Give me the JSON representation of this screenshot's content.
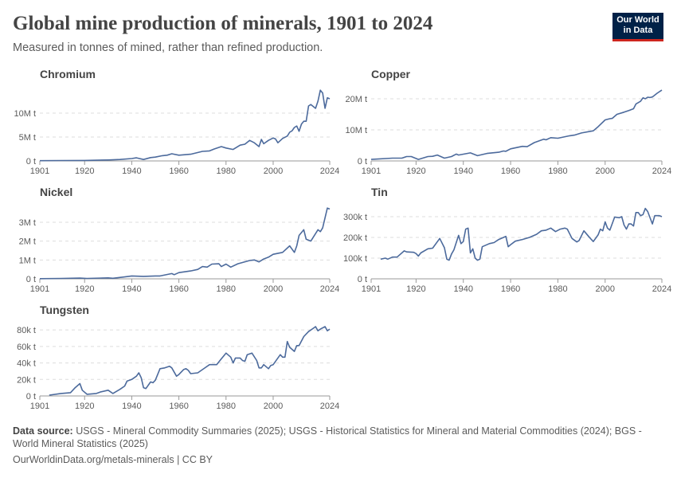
{
  "header": {
    "title": "Global mine production of minerals, 1901 to 2024",
    "subtitle": "Measured in tonnes of mined, rather than refined production.",
    "logo_text": "Our World in Data"
  },
  "footer": {
    "source_label": "Data source:",
    "source_text": "USGS - Mineral Commodity Summaries (2025); USGS - Historical Statistics for Mineral and Material Commodities (2024); BGS - World Mineral Statistics (2025)",
    "url_license": "OurWorldinData.org/metals-minerals | CC BY"
  },
  "colors": {
    "line": "#4c6a9c",
    "grid": "#dddddd",
    "axis": "#999999",
    "text": "#5b5b5b",
    "title": "#444444",
    "logo_bg": "#002147",
    "logo_accent": "#ce261e"
  },
  "chart_data": [
    {
      "type": "line",
      "title": "Chromium",
      "xlim": [
        1901,
        2024
      ],
      "ylim": [
        0,
        15
      ],
      "x_ticks": [
        "1901",
        "1920",
        "1940",
        "1960",
        "1980",
        "2000",
        "2024"
      ],
      "y_ticks": [
        {
          "value": 0,
          "label": "0 t"
        },
        {
          "value": 5,
          "label": "5M t"
        },
        {
          "value": 10,
          "label": "10M t"
        }
      ],
      "unit": "million tonnes",
      "grid": true,
      "points": [
        [
          1901,
          0.05
        ],
        [
          1910,
          0.08
        ],
        [
          1920,
          0.1
        ],
        [
          1930,
          0.2
        ],
        [
          1935,
          0.3
        ],
        [
          1940,
          0.5
        ],
        [
          1942,
          0.65
        ],
        [
          1945,
          0.3
        ],
        [
          1948,
          0.7
        ],
        [
          1950,
          0.8
        ],
        [
          1953,
          1.1
        ],
        [
          1955,
          1.2
        ],
        [
          1957,
          1.5
        ],
        [
          1960,
          1.2
        ],
        [
          1965,
          1.4
        ],
        [
          1970,
          2.0
        ],
        [
          1973,
          2.1
        ],
        [
          1975,
          2.5
        ],
        [
          1978,
          3.0
        ],
        [
          1980,
          2.7
        ],
        [
          1983,
          2.4
        ],
        [
          1986,
          3.3
        ],
        [
          1988,
          3.5
        ],
        [
          1990,
          4.3
        ],
        [
          1992,
          3.8
        ],
        [
          1994,
          3.0
        ],
        [
          1995,
          4.5
        ],
        [
          1996,
          3.6
        ],
        [
          1998,
          4.3
        ],
        [
          2000,
          4.8
        ],
        [
          2001,
          4.6
        ],
        [
          2002,
          3.8
        ],
        [
          2004,
          4.7
        ],
        [
          2006,
          5.2
        ],
        [
          2007,
          6.0
        ],
        [
          2008,
          6.3
        ],
        [
          2009,
          7.0
        ],
        [
          2010,
          7.3
        ],
        [
          2011,
          6.2
        ],
        [
          2012,
          7.7
        ],
        [
          2013,
          8.3
        ],
        [
          2014,
          8.3
        ],
        [
          2015,
          11.5
        ],
        [
          2016,
          11.8
        ],
        [
          2018,
          11.0
        ],
        [
          2019,
          12.5
        ],
        [
          2020,
          14.8
        ],
        [
          2021,
          14.2
        ],
        [
          2022,
          11.0
        ],
        [
          2023,
          13.2
        ],
        [
          2024,
          13.0
        ]
      ]
    },
    {
      "type": "line",
      "title": "Copper",
      "xlim": [
        1901,
        2024
      ],
      "ylim": [
        0,
        23
      ],
      "x_ticks": [
        "1901",
        "1920",
        "1940",
        "1960",
        "1980",
        "2000",
        "2024"
      ],
      "y_ticks": [
        {
          "value": 0,
          "label": "0 t"
        },
        {
          "value": 10,
          "label": "10M t"
        },
        {
          "value": 20,
          "label": "20M t"
        }
      ],
      "unit": "million tonnes",
      "grid": true,
      "points": [
        [
          1901,
          0.5
        ],
        [
          1910,
          0.9
        ],
        [
          1914,
          0.9
        ],
        [
          1916,
          1.4
        ],
        [
          1918,
          1.4
        ],
        [
          1921,
          0.5
        ],
        [
          1925,
          1.4
        ],
        [
          1927,
          1.5
        ],
        [
          1929,
          1.9
        ],
        [
          1932,
          0.9
        ],
        [
          1935,
          1.4
        ],
        [
          1937,
          2.2
        ],
        [
          1938,
          1.9
        ],
        [
          1943,
          2.6
        ],
        [
          1946,
          1.7
        ],
        [
          1950,
          2.4
        ],
        [
          1955,
          2.8
        ],
        [
          1957,
          3.2
        ],
        [
          1958,
          3.1
        ],
        [
          1960,
          3.9
        ],
        [
          1965,
          4.7
        ],
        [
          1967,
          4.6
        ],
        [
          1970,
          5.9
        ],
        [
          1974,
          7.0
        ],
        [
          1975,
          6.8
        ],
        [
          1977,
          7.5
        ],
        [
          1980,
          7.3
        ],
        [
          1985,
          8.1
        ],
        [
          1987,
          8.3
        ],
        [
          1990,
          9.0
        ],
        [
          1995,
          9.7
        ],
        [
          1997,
          11.0
        ],
        [
          2000,
          13.2
        ],
        [
          2002,
          13.6
        ],
        [
          2003,
          13.7
        ],
        [
          2005,
          15.0
        ],
        [
          2008,
          15.7
        ],
        [
          2010,
          16.2
        ],
        [
          2012,
          16.8
        ],
        [
          2013,
          18.3
        ],
        [
          2015,
          19.2
        ],
        [
          2016,
          20.3
        ],
        [
          2017,
          20.0
        ],
        [
          2018,
          20.5
        ],
        [
          2019,
          20.4
        ],
        [
          2020,
          20.6
        ],
        [
          2022,
          21.8
        ],
        [
          2024,
          22.8
        ]
      ]
    },
    {
      "type": "line",
      "title": "Nickel",
      "xlim": [
        1901,
        2024
      ],
      "ylim": [
        0,
        3.8
      ],
      "x_ticks": [
        "1901",
        "1920",
        "1940",
        "1960",
        "1980",
        "2000",
        "2024"
      ],
      "y_ticks": [
        {
          "value": 0,
          "label": "0 t"
        },
        {
          "value": 1,
          "label": "1M t"
        },
        {
          "value": 2,
          "label": "2M t"
        },
        {
          "value": 3,
          "label": "3M t"
        }
      ],
      "unit": "million tonnes",
      "grid": true,
      "points": [
        [
          1901,
          0.01
        ],
        [
          1910,
          0.02
        ],
        [
          1918,
          0.04
        ],
        [
          1921,
          0.02
        ],
        [
          1930,
          0.05
        ],
        [
          1932,
          0.03
        ],
        [
          1937,
          0.1
        ],
        [
          1940,
          0.15
        ],
        [
          1945,
          0.13
        ],
        [
          1950,
          0.15
        ],
        [
          1952,
          0.15
        ],
        [
          1957,
          0.28
        ],
        [
          1958,
          0.22
        ],
        [
          1960,
          0.33
        ],
        [
          1965,
          0.42
        ],
        [
          1968,
          0.5
        ],
        [
          1970,
          0.65
        ],
        [
          1972,
          0.62
        ],
        [
          1974,
          0.78
        ],
        [
          1977,
          0.8
        ],
        [
          1978,
          0.65
        ],
        [
          1980,
          0.78
        ],
        [
          1982,
          0.62
        ],
        [
          1985,
          0.8
        ],
        [
          1990,
          0.97
        ],
        [
          1992,
          1.0
        ],
        [
          1994,
          0.9
        ],
        [
          1996,
          1.05
        ],
        [
          1998,
          1.15
        ],
        [
          2000,
          1.3
        ],
        [
          2004,
          1.4
        ],
        [
          2007,
          1.75
        ],
        [
          2009,
          1.4
        ],
        [
          2010,
          1.75
        ],
        [
          2011,
          2.3
        ],
        [
          2013,
          2.6
        ],
        [
          2014,
          2.1
        ],
        [
          2016,
          2.0
        ],
        [
          2019,
          2.6
        ],
        [
          2020,
          2.5
        ],
        [
          2021,
          2.7
        ],
        [
          2023,
          3.75
        ],
        [
          2024,
          3.7
        ]
      ]
    },
    {
      "type": "line",
      "title": "Tin",
      "xlim": [
        1901,
        2024
      ],
      "ylim": [
        0,
        350
      ],
      "x_ticks": [
        "1901",
        "1920",
        "1940",
        "1960",
        "1980",
        "2000",
        "2024"
      ],
      "y_ticks": [
        {
          "value": 0,
          "label": "0 t"
        },
        {
          "value": 100,
          "label": "100k t"
        },
        {
          "value": 200,
          "label": "200k t"
        },
        {
          "value": 300,
          "label": "300k t"
        }
      ],
      "unit": "thousand tonnes",
      "grid": true,
      "points": [
        [
          1905,
          95
        ],
        [
          1907,
          100
        ],
        [
          1908,
          95
        ],
        [
          1910,
          105
        ],
        [
          1912,
          105
        ],
        [
          1915,
          135
        ],
        [
          1916,
          130
        ],
        [
          1919,
          128
        ],
        [
          1920,
          122
        ],
        [
          1921,
          110
        ],
        [
          1922,
          125
        ],
        [
          1925,
          145
        ],
        [
          1927,
          148
        ],
        [
          1930,
          195
        ],
        [
          1932,
          150
        ],
        [
          1933,
          95
        ],
        [
          1934,
          90
        ],
        [
          1935,
          120
        ],
        [
          1936,
          140
        ],
        [
          1938,
          210
        ],
        [
          1939,
          170
        ],
        [
          1940,
          180
        ],
        [
          1941,
          240
        ],
        [
          1942,
          245
        ],
        [
          1943,
          125
        ],
        [
          1944,
          145
        ],
        [
          1945,
          100
        ],
        [
          1946,
          90
        ],
        [
          1947,
          95
        ],
        [
          1948,
          155
        ],
        [
          1951,
          170
        ],
        [
          1953,
          175
        ],
        [
          1955,
          190
        ],
        [
          1957,
          200
        ],
        [
          1958,
          205
        ],
        [
          1959,
          155
        ],
        [
          1960,
          165
        ],
        [
          1962,
          182
        ],
        [
          1965,
          190
        ],
        [
          1968,
          200
        ],
        [
          1971,
          215
        ],
        [
          1973,
          232
        ],
        [
          1975,
          235
        ],
        [
          1977,
          245
        ],
        [
          1979,
          228
        ],
        [
          1981,
          240
        ],
        [
          1983,
          245
        ],
        [
          1984,
          240
        ],
        [
          1986,
          195
        ],
        [
          1988,
          178
        ],
        [
          1989,
          185
        ],
        [
          1991,
          232
        ],
        [
          1993,
          205
        ],
        [
          1994,
          192
        ],
        [
          1995,
          180
        ],
        [
          1997,
          212
        ],
        [
          1998,
          240
        ],
        [
          1999,
          232
        ],
        [
          2000,
          275
        ],
        [
          2001,
          245
        ],
        [
          2002,
          235
        ],
        [
          2004,
          298
        ],
        [
          2006,
          295
        ],
        [
          2007,
          300
        ],
        [
          2008,
          260
        ],
        [
          2009,
          240
        ],
        [
          2010,
          265
        ],
        [
          2011,
          265
        ],
        [
          2012,
          255
        ],
        [
          2013,
          320
        ],
        [
          2014,
          320
        ],
        [
          2015,
          305
        ],
        [
          2016,
          310
        ],
        [
          2017,
          340
        ],
        [
          2018,
          325
        ],
        [
          2020,
          265
        ],
        [
          2021,
          305
        ],
        [
          2023,
          305
        ],
        [
          2024,
          300
        ]
      ]
    },
    {
      "type": "line",
      "title": "Tungsten",
      "xlim": [
        1901,
        2024
      ],
      "ylim": [
        0,
        85
      ],
      "x_ticks": [
        "1901",
        "1920",
        "1940",
        "1960",
        "1980",
        "2000",
        "2024"
      ],
      "y_ticks": [
        {
          "value": 0,
          "label": "0 t"
        },
        {
          "value": 20,
          "label": "20k t"
        },
        {
          "value": 40,
          "label": "40k t"
        },
        {
          "value": 60,
          "label": "60k t"
        },
        {
          "value": 80,
          "label": "80k t"
        }
      ],
      "unit": "thousand tonnes",
      "grid": true,
      "points": [
        [
          1905,
          1
        ],
        [
          1910,
          3
        ],
        [
          1914,
          4
        ],
        [
          1916,
          10
        ],
        [
          1918,
          15
        ],
        [
          1919,
          7
        ],
        [
          1921,
          2
        ],
        [
          1925,
          3
        ],
        [
          1927,
          5
        ],
        [
          1930,
          7
        ],
        [
          1932,
          3
        ],
        [
          1935,
          8
        ],
        [
          1937,
          12
        ],
        [
          1938,
          18
        ],
        [
          1940,
          20
        ],
        [
          1942,
          24
        ],
        [
          1943,
          28
        ],
        [
          1944,
          22
        ],
        [
          1945,
          10
        ],
        [
          1946,
          9
        ],
        [
          1948,
          17
        ],
        [
          1949,
          16
        ],
        [
          1950,
          19
        ],
        [
          1952,
          33
        ],
        [
          1954,
          34
        ],
        [
          1956,
          36
        ],
        [
          1957,
          34
        ],
        [
          1959,
          24
        ],
        [
          1960,
          26
        ],
        [
          1962,
          32
        ],
        [
          1963,
          33
        ],
        [
          1964,
          31
        ],
        [
          1965,
          27
        ],
        [
          1968,
          28
        ],
        [
          1970,
          32
        ],
        [
          1973,
          38
        ],
        [
          1976,
          38
        ],
        [
          1978,
          45
        ],
        [
          1980,
          52
        ],
        [
          1982,
          47
        ],
        [
          1983,
          40
        ],
        [
          1984,
          46
        ],
        [
          1986,
          46
        ],
        [
          1987,
          43
        ],
        [
          1988,
          42
        ],
        [
          1989,
          50
        ],
        [
          1991,
          52
        ],
        [
          1993,
          43
        ],
        [
          1994,
          34
        ],
        [
          1995,
          34
        ],
        [
          1996,
          38
        ],
        [
          1998,
          33
        ],
        [
          1999,
          37
        ],
        [
          2000,
          38
        ],
        [
          2003,
          50
        ],
        [
          2004,
          47
        ],
        [
          2005,
          47
        ],
        [
          2006,
          66
        ],
        [
          2007,
          59
        ],
        [
          2009,
          54
        ],
        [
          2010,
          61
        ],
        [
          2011,
          61
        ],
        [
          2013,
          72
        ],
        [
          2015,
          78
        ],
        [
          2017,
          82
        ],
        [
          2018,
          84
        ],
        [
          2019,
          79
        ],
        [
          2020,
          81
        ],
        [
          2022,
          84
        ],
        [
          2023,
          79
        ],
        [
          2024,
          81
        ]
      ]
    }
  ]
}
